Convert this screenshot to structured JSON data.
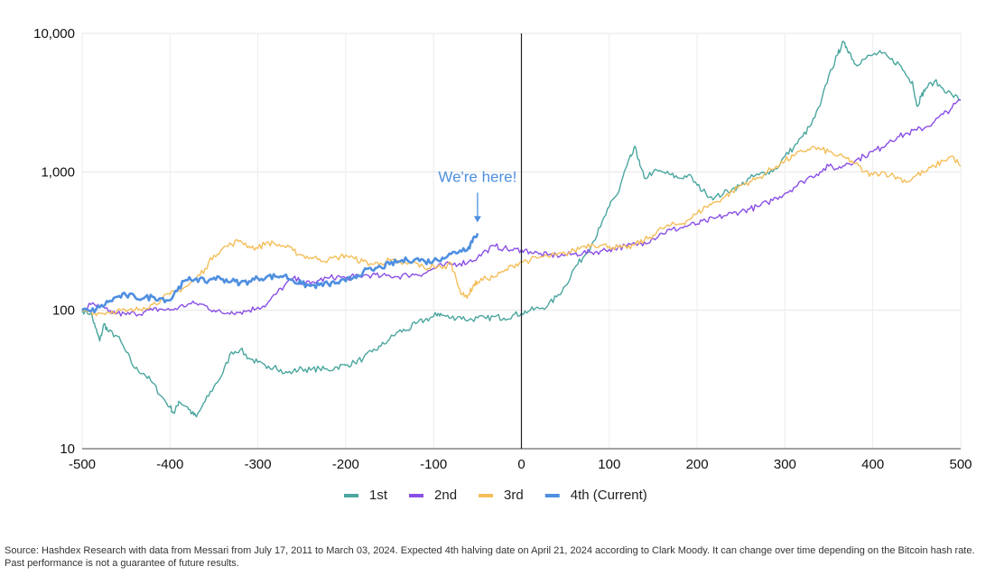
{
  "chart_data": {
    "type": "line",
    "xlim": [
      -500,
      500
    ],
    "ylim": [
      10,
      10000
    ],
    "y_scale": "log",
    "grid": true,
    "legend_position": "bottom",
    "x_ticks": [
      "-500",
      "-400",
      "-300",
      "-200",
      "-100",
      "0",
      "100",
      "200",
      "300",
      "400",
      "500"
    ],
    "y_ticks": [
      "10",
      "100",
      "1,000",
      "10,000"
    ],
    "y_tick_values": [
      10,
      100,
      1000,
      10000
    ],
    "x_tick_values": [
      -500,
      -400,
      -300,
      -200,
      -100,
      0,
      100,
      200,
      300,
      400,
      500
    ],
    "reference_line_x": 0,
    "annotation": {
      "text": "We're here!",
      "x": -50,
      "y": 360
    },
    "series": [
      {
        "name": "1st",
        "color": "#4ba69f",
        "x": [
          -500,
          -490,
          -485,
          -480,
          -475,
          -470,
          -460,
          -450,
          -440,
          -430,
          -420,
          -410,
          -400,
          -395,
          -390,
          -380,
          -375,
          -370,
          -360,
          -350,
          -340,
          -330,
          -320,
          -310,
          -300,
          -290,
          -280,
          -270,
          -260,
          -250,
          -240,
          -230,
          -220,
          -210,
          -200,
          -190,
          -180,
          -170,
          -160,
          -150,
          -140,
          -130,
          -120,
          -110,
          -100,
          -95,
          -90,
          -80,
          -70,
          -60,
          -50,
          -40,
          -30,
          -20,
          -10,
          0,
          10,
          20,
          30,
          40,
          50,
          60,
          70,
          80,
          90,
          100,
          110,
          115,
          120,
          125,
          130,
          135,
          140,
          150,
          160,
          170,
          180,
          190,
          200,
          210,
          220,
          230,
          240,
          250,
          260,
          270,
          280,
          290,
          300,
          310,
          320,
          330,
          340,
          350,
          360,
          365,
          370,
          375,
          380,
          390,
          400,
          410,
          420,
          430,
          440,
          445,
          450,
          455,
          460,
          470,
          480,
          490,
          500
        ],
        "y": [
          100,
          95,
          75,
          60,
          80,
          70,
          65,
          50,
          38,
          35,
          30,
          24,
          20,
          18,
          22,
          20,
          18,
          17,
          22,
          28,
          35,
          50,
          52,
          45,
          42,
          38,
          40,
          35,
          36,
          38,
          37,
          38,
          37,
          39,
          40,
          42,
          45,
          50,
          55,
          62,
          70,
          72,
          80,
          85,
          90,
          95,
          92,
          88,
          90,
          85,
          88,
          87,
          90,
          88,
          92,
          95,
          100,
          103,
          108,
          125,
          150,
          200,
          240,
          300,
          400,
          560,
          700,
          900,
          1100,
          1300,
          1500,
          1100,
          900,
          1000,
          1000,
          950,
          900,
          950,
          800,
          700,
          650,
          700,
          750,
          800,
          900,
          950,
          1000,
          1050,
          1300,
          1500,
          1800,
          2200,
          3000,
          5000,
          7000,
          8500,
          8000,
          7000,
          6000,
          6500,
          7000,
          7200,
          6500,
          6000,
          4800,
          4500,
          3000,
          3500,
          4000,
          4500,
          4000,
          3600,
          3300
        ]
      },
      {
        "name": "2nd",
        "color": "#8a4fe6",
        "x": [
          -500,
          -490,
          -480,
          -470,
          -460,
          -450,
          -440,
          -430,
          -420,
          -410,
          -400,
          -390,
          -380,
          -370,
          -360,
          -350,
          -340,
          -330,
          -320,
          -310,
          -300,
          -290,
          -280,
          -270,
          -260,
          -250,
          -240,
          -230,
          -220,
          -210,
          -200,
          -190,
          -180,
          -170,
          -160,
          -150,
          -140,
          -130,
          -120,
          -110,
          -100,
          -90,
          -80,
          -70,
          -60,
          -50,
          -40,
          -30,
          -20,
          -10,
          0,
          10,
          20,
          30,
          40,
          50,
          60,
          70,
          80,
          90,
          100,
          110,
          120,
          130,
          140,
          150,
          160,
          170,
          180,
          190,
          200,
          210,
          220,
          230,
          240,
          250,
          260,
          270,
          280,
          290,
          300,
          310,
          320,
          330,
          340,
          350,
          360,
          370,
          380,
          390,
          400,
          410,
          420,
          430,
          440,
          450,
          460,
          470,
          480,
          490,
          500
        ],
        "y": [
          100,
          110,
          105,
          98,
          95,
          93,
          95,
          97,
          100,
          102,
          100,
          105,
          110,
          112,
          108,
          100,
          95,
          98,
          97,
          100,
          105,
          110,
          130,
          150,
          170,
          160,
          155,
          165,
          170,
          175,
          170,
          175,
          178,
          180,
          175,
          178,
          175,
          180,
          182,
          185,
          200,
          210,
          215,
          218,
          225,
          240,
          270,
          290,
          280,
          270,
          275,
          265,
          255,
          250,
          250,
          250,
          255,
          260,
          262,
          268,
          275,
          285,
          290,
          300,
          310,
          330,
          360,
          380,
          390,
          410,
          420,
          440,
          460,
          480,
          500,
          520,
          540,
          560,
          600,
          650,
          700,
          770,
          850,
          930,
          1000,
          1100,
          1050,
          1150,
          1200,
          1300,
          1400,
          1500,
          1700,
          1800,
          1900,
          2000,
          2100,
          2300,
          2600,
          2900,
          3300
        ]
      },
      {
        "name": "3rd",
        "color": "#f4be5a",
        "x": [
          -500,
          -490,
          -480,
          -470,
          -460,
          -450,
          -440,
          -430,
          -420,
          -410,
          -400,
          -390,
          -380,
          -370,
          -360,
          -350,
          -340,
          -330,
          -320,
          -310,
          -300,
          -290,
          -280,
          -270,
          -260,
          -250,
          -240,
          -230,
          -220,
          -210,
          -200,
          -190,
          -180,
          -170,
          -160,
          -150,
          -140,
          -130,
          -120,
          -110,
          -100,
          -90,
          -80,
          -70,
          -65,
          -60,
          -55,
          -50,
          -40,
          -30,
          -20,
          -10,
          0,
          10,
          20,
          30,
          40,
          50,
          60,
          70,
          80,
          90,
          100,
          110,
          120,
          130,
          140,
          150,
          160,
          170,
          180,
          190,
          200,
          210,
          220,
          230,
          240,
          250,
          260,
          270,
          280,
          290,
          300,
          310,
          320,
          330,
          340,
          350,
          360,
          370,
          380,
          390,
          400,
          410,
          420,
          430,
          440,
          450,
          460,
          470,
          480,
          490,
          500
        ],
        "y": [
          100,
          98,
          95,
          97,
          100,
          98,
          100,
          105,
          110,
          120,
          130,
          140,
          150,
          170,
          200,
          250,
          280,
          300,
          320,
          290,
          280,
          310,
          300,
          290,
          270,
          250,
          240,
          235,
          230,
          240,
          250,
          235,
          225,
          215,
          220,
          230,
          220,
          215,
          220,
          200,
          210,
          200,
          220,
          140,
          125,
          130,
          150,
          160,
          170,
          175,
          190,
          210,
          225,
          230,
          240,
          245,
          250,
          255,
          270,
          290,
          300,
          295,
          290,
          285,
          280,
          300,
          320,
          350,
          390,
          410,
          420,
          450,
          500,
          560,
          600,
          650,
          720,
          800,
          850,
          900,
          1000,
          1100,
          1200,
          1300,
          1400,
          1500,
          1450,
          1400,
          1300,
          1250,
          1150,
          1000,
          950,
          1000,
          950,
          900,
          850,
          950,
          1000,
          1100,
          1200,
          1300,
          1100
        ]
      },
      {
        "name": "4th (Current)",
        "color": "#4f8fe0",
        "x": [
          -500,
          -490,
          -480,
          -470,
          -460,
          -450,
          -440,
          -430,
          -420,
          -410,
          -400,
          -390,
          -380,
          -370,
          -360,
          -350,
          -340,
          -330,
          -320,
          -310,
          -300,
          -290,
          -280,
          -270,
          -260,
          -250,
          -240,
          -230,
          -220,
          -210,
          -200,
          -190,
          -180,
          -170,
          -160,
          -150,
          -140,
          -130,
          -120,
          -110,
          -100,
          -90,
          -80,
          -70,
          -60,
          -55,
          -50
        ],
        "y": [
          100,
          98,
          105,
          115,
          125,
          128,
          125,
          122,
          125,
          122,
          118,
          148,
          165,
          170,
          160,
          172,
          168,
          162,
          158,
          162,
          170,
          175,
          175,
          178,
          165,
          155,
          150,
          152,
          155,
          158,
          162,
          175,
          190,
          195,
          205,
          215,
          225,
          230,
          235,
          225,
          228,
          240,
          255,
          270,
          285,
          330,
          360
        ]
      }
    ]
  },
  "legend": [
    {
      "label": "1st",
      "color": "#4ba69f"
    },
    {
      "label": "2nd",
      "color": "#8a4fe6"
    },
    {
      "label": "3rd",
      "color": "#f4be5a"
    },
    {
      "label": "4th (Current)",
      "color": "#4f8fe0"
    }
  ],
  "footnote": "Source: Hashdex Research with data from Messari from July 17, 2011 to March 03, 2024. Expected 4th halving date on April 21, 2024 according to Clark Moody. It can change over time depending on the Bitcoin hash rate. Past performance is not a guarantee of future results."
}
